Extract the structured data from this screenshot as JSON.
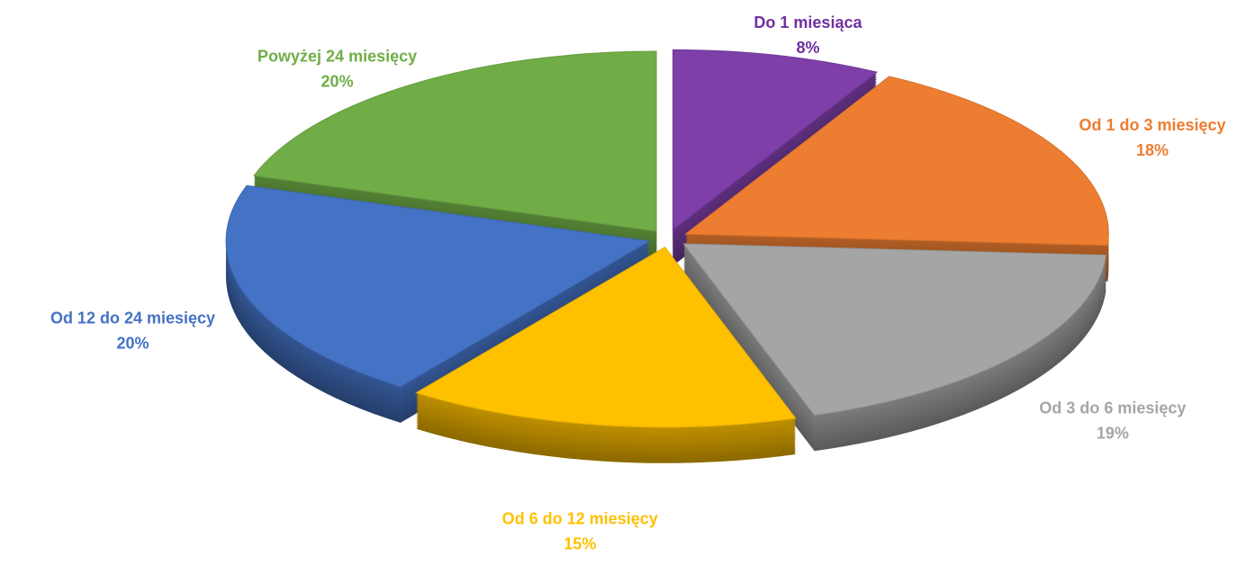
{
  "chart_data": {
    "type": "pie3d",
    "categories": [
      "Do 1 miesiąca",
      "Od 1 do 3 miesięcy",
      "Od 3 do 6 miesięcy",
      "Od 6 do 12 miesięcy",
      "Od 12 do 24 miesięcy",
      "Powyżej 24 miesięcy"
    ],
    "values": [
      8,
      18,
      19,
      15,
      20,
      20
    ],
    "value_labels": [
      "8%",
      "18%",
      "19%",
      "15%",
      "20%",
      "20%"
    ],
    "colors": [
      "#7e3fa8",
      "#ed7d31",
      "#a5a5a5",
      "#ffc000",
      "#4472c4",
      "#70ad47"
    ],
    "label_colors": [
      "#7030a0",
      "#ed7d31",
      "#a5a5a5",
      "#ffc000",
      "#4472c4",
      "#70ad47"
    ]
  }
}
